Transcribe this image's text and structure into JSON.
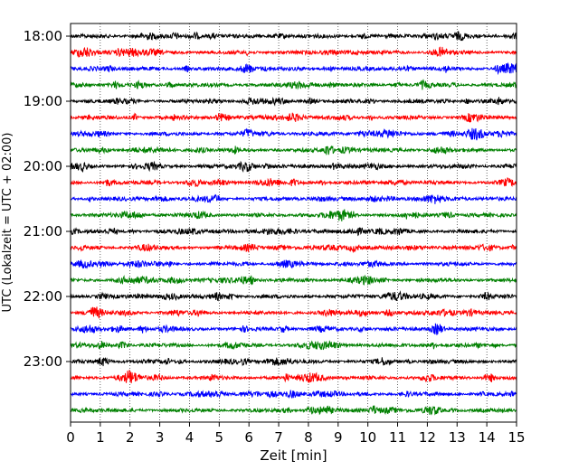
{
  "chart_data": {
    "type": "line",
    "title": "",
    "xlabel": "Zeit  [min]",
    "ylabel": "UTC (Lokalzeit = UTC + 02:00)",
    "xlim": [
      0,
      15
    ],
    "x_ticks": [
      0,
      1,
      2,
      3,
      4,
      5,
      6,
      7,
      8,
      9,
      10,
      11,
      12,
      13,
      14,
      15
    ],
    "x_grid": true,
    "y_grid": false,
    "y_ticks": [
      {
        "label": "18:00",
        "trace": 0
      },
      {
        "label": "19:00",
        "trace": 4
      },
      {
        "label": "20:00",
        "trace": 8
      },
      {
        "label": "21:00",
        "trace": 12
      },
      {
        "label": "22:00",
        "trace": 16
      },
      {
        "label": "23:00",
        "trace": 20
      }
    ],
    "trace_interval_minutes": 15,
    "trace_duration_minutes": 15,
    "traces": [
      {
        "start": "18:00",
        "color": "#000000"
      },
      {
        "start": "18:15",
        "color": "#ff0000"
      },
      {
        "start": "18:30",
        "color": "#0000ff"
      },
      {
        "start": "18:45",
        "color": "#008000"
      },
      {
        "start": "19:00",
        "color": "#000000"
      },
      {
        "start": "19:15",
        "color": "#ff0000"
      },
      {
        "start": "19:30",
        "color": "#0000ff"
      },
      {
        "start": "19:45",
        "color": "#008000"
      },
      {
        "start": "20:00",
        "color": "#000000"
      },
      {
        "start": "20:15",
        "color": "#ff0000"
      },
      {
        "start": "20:30",
        "color": "#0000ff"
      },
      {
        "start": "20:45",
        "color": "#008000"
      },
      {
        "start": "21:00",
        "color": "#000000"
      },
      {
        "start": "21:15",
        "color": "#ff0000"
      },
      {
        "start": "21:30",
        "color": "#0000ff"
      },
      {
        "start": "21:45",
        "color": "#008000"
      },
      {
        "start": "22:00",
        "color": "#000000"
      },
      {
        "start": "22:15",
        "color": "#ff0000"
      },
      {
        "start": "22:30",
        "color": "#0000ff"
      },
      {
        "start": "22:45",
        "color": "#008000"
      },
      {
        "start": "23:00",
        "color": "#000000"
      },
      {
        "start": "23:15",
        "color": "#ff0000"
      },
      {
        "start": "23:30",
        "color": "#0000ff"
      },
      {
        "start": "23:45",
        "color": "#008000"
      }
    ]
  }
}
